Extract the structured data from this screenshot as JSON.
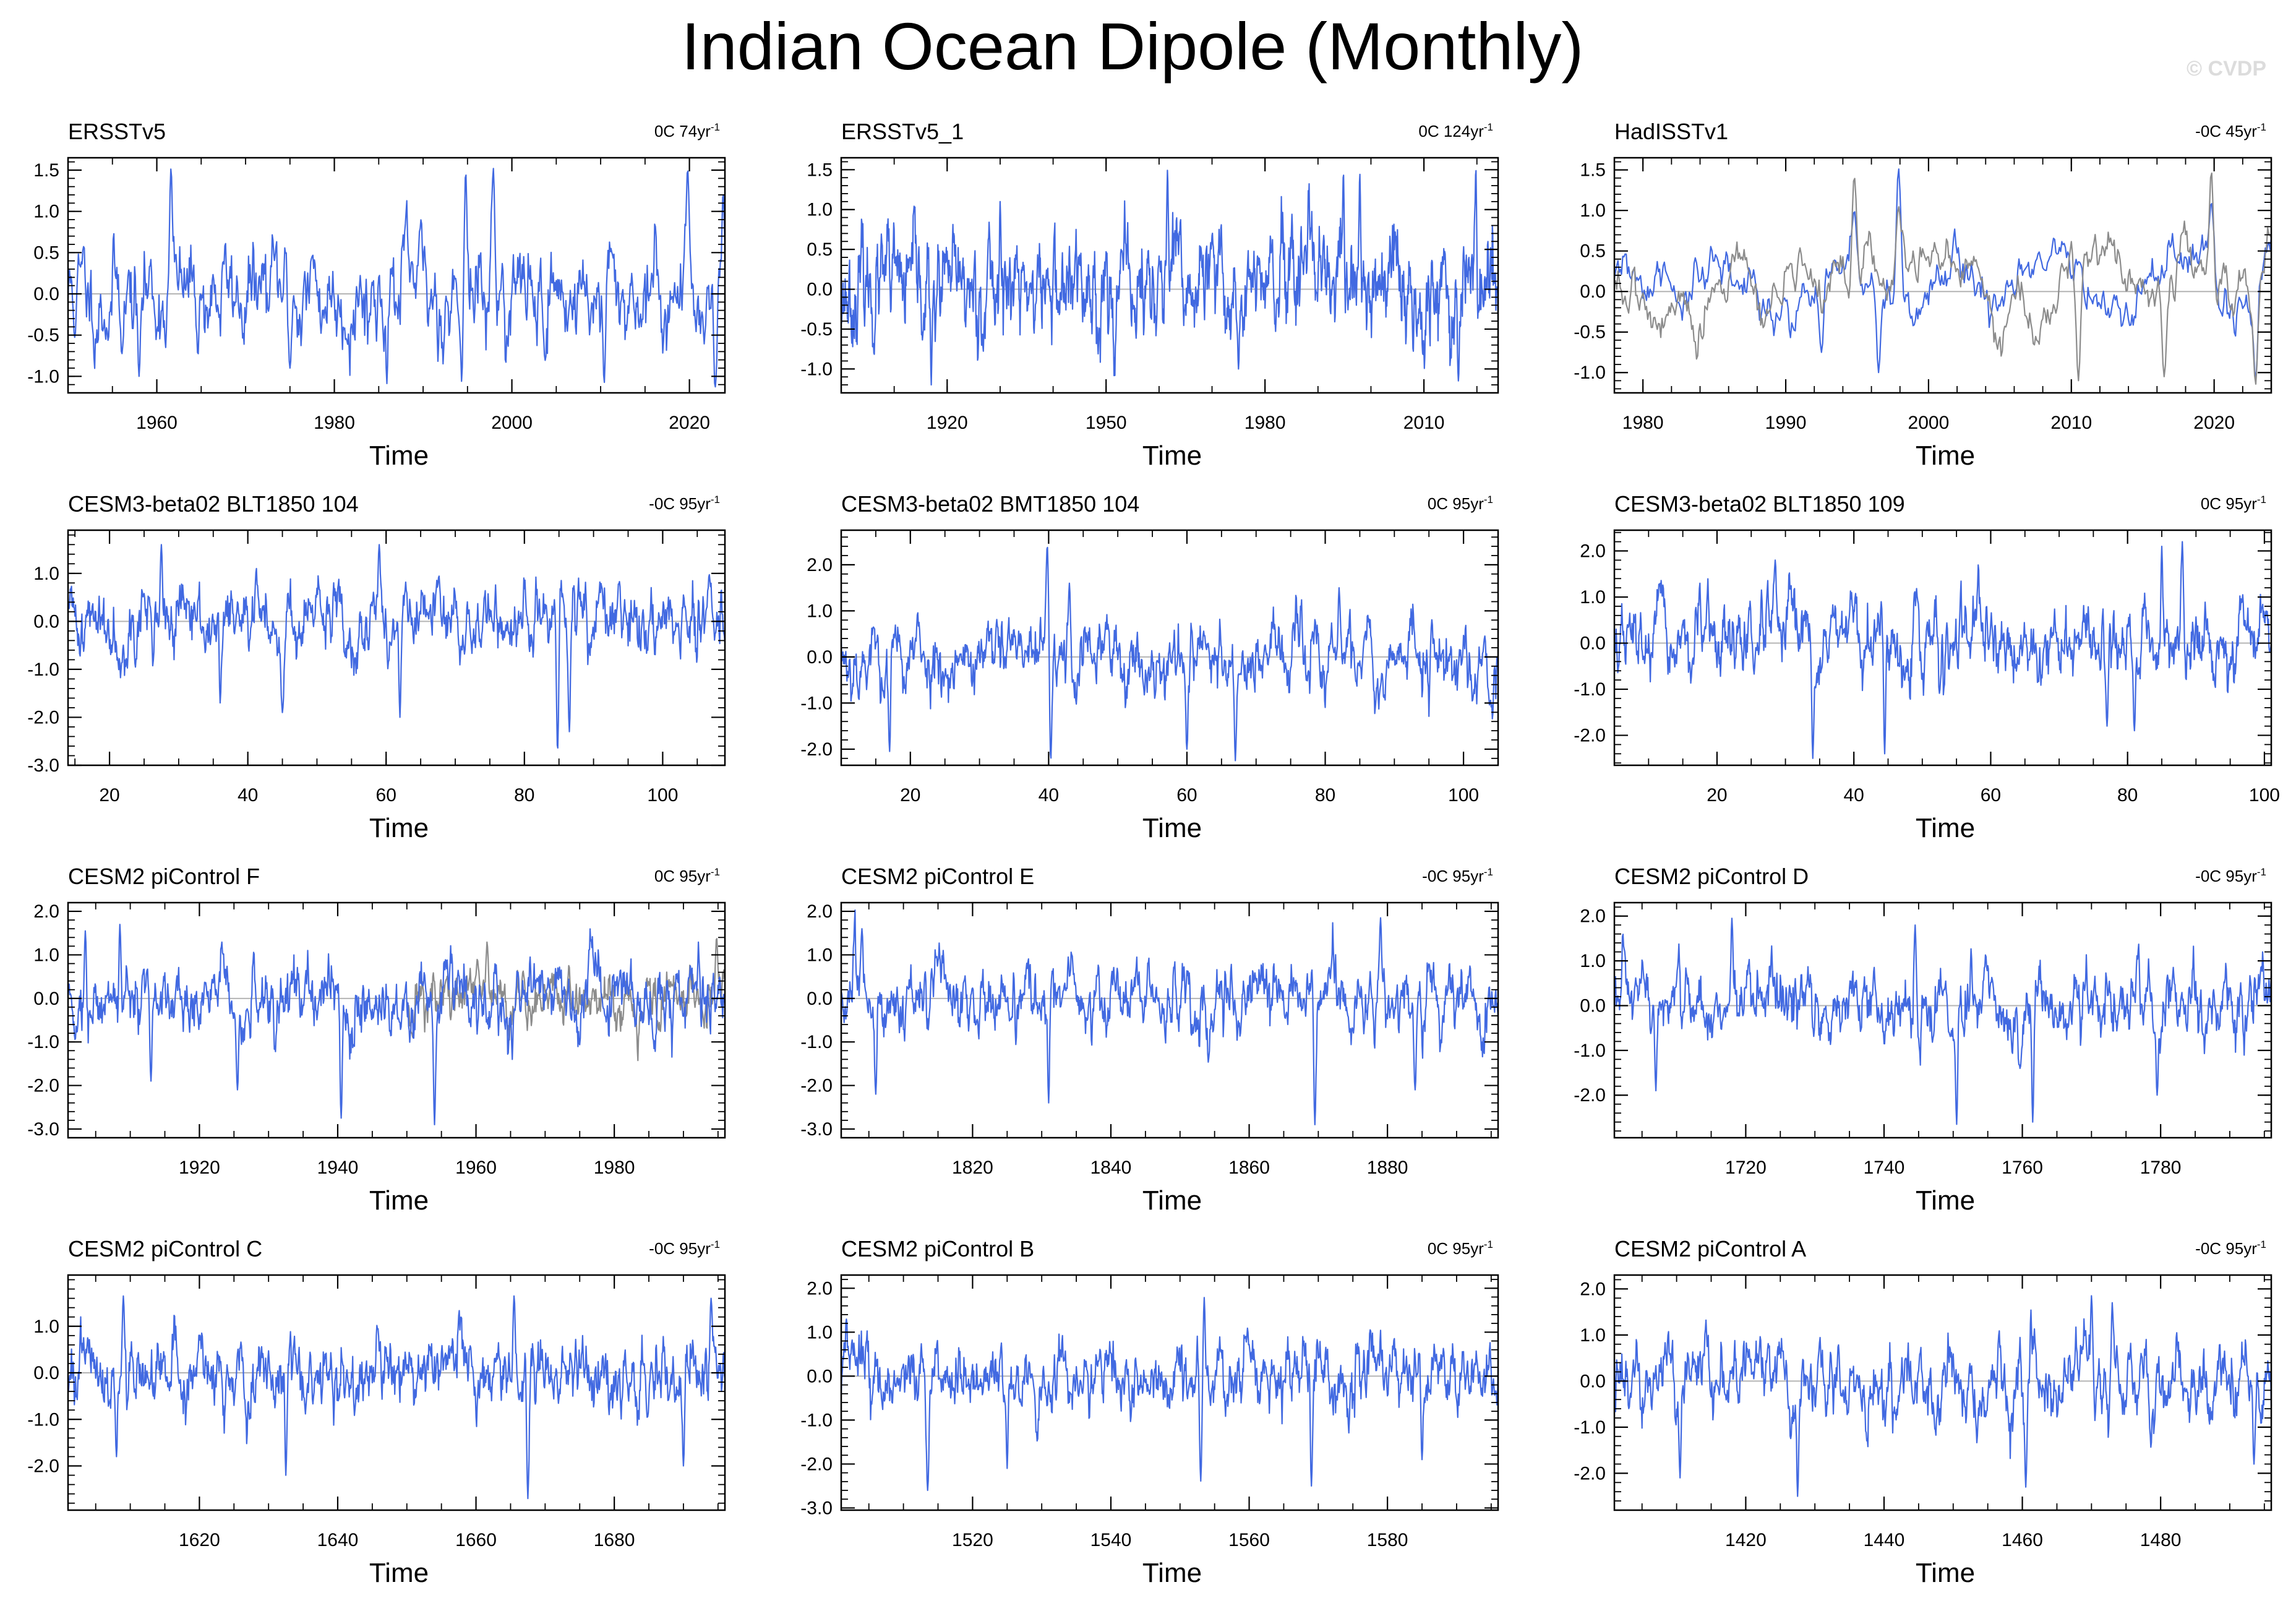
{
  "page": {
    "title": "Indian Ocean Dipole (Monthly)",
    "watermark": "© CVDP"
  },
  "colors": {
    "model": "#4169e1",
    "obs_overlay": "#8c8c8c",
    "zero_line": "#b4b4b4",
    "frame": "#000000"
  },
  "chart_data": [
    {
      "type": "line",
      "title": "ERSSTv5",
      "note": "0C 74yr",
      "note_exp": "-1",
      "xlabel": "Time",
      "xlim": [
        1950,
        2024
      ],
      "ylim": [
        -1.2,
        1.65
      ],
      "xticks": [
        1960,
        1980,
        2000,
        2020
      ],
      "yticks": [
        -1.0,
        -0.5,
        0.0,
        0.5,
        1.0,
        1.5
      ],
      "ytick_labels": [
        "-1.0",
        "-0.5",
        "0.0",
        "0.5",
        "1.0",
        "1.5"
      ],
      "minor_y_step": 0.1,
      "series": [
        {
          "name": "ERSSTv5",
          "color": "#4169e1",
          "seed": 11,
          "amp": 0.36,
          "peaks": [
            [
              1961.6,
              1.52
            ],
            [
              1994.8,
              1.48
            ],
            [
              1997.9,
              1.53
            ],
            [
              2019.8,
              1.52
            ],
            [
              2023.8,
              1.22
            ],
            [
              2010.4,
              -1.08
            ],
            [
              2022.9,
              -1.13
            ],
            [
              1958.0,
              -1.0
            ],
            [
              1975.0,
              -0.9
            ]
          ]
        }
      ]
    },
    {
      "type": "line",
      "title": "ERSSTv5_1",
      "note": "0C 124yr",
      "note_exp": "-1",
      "xlabel": "Time",
      "xlim": [
        1900,
        2024
      ],
      "ylim": [
        -1.3,
        1.65
      ],
      "xticks": [
        1920,
        1950,
        1980,
        2010
      ],
      "yticks": [
        -1.0,
        -0.5,
        0.0,
        0.5,
        1.0,
        1.5
      ],
      "ytick_labels": [
        "-1.0",
        "-0.5",
        "0.0",
        "0.5",
        "1.0",
        "1.5"
      ],
      "minor_y_step": 0.1,
      "series": [
        {
          "name": "ERSSTv5_1",
          "color": "#4169e1",
          "seed": 23,
          "amp": 0.36,
          "peaks": [
            [
              1961.6,
              1.5
            ],
            [
              1994.8,
              1.46
            ],
            [
              1997.9,
              1.45
            ],
            [
              2019.8,
              1.52
            ],
            [
              1917.0,
              -1.2
            ],
            [
              1930.0,
              1.1
            ],
            [
              2016.5,
              -1.15
            ],
            [
              1975.0,
              -1.0
            ]
          ]
        }
      ]
    },
    {
      "type": "line",
      "title": "HadISSTv1",
      "note": "-0C 45yr",
      "note_exp": "-1",
      "xlabel": "Time",
      "xlim": [
        1978,
        2024
      ],
      "ylim": [
        -1.25,
        1.65
      ],
      "xticks": [
        1980,
        1990,
        2000,
        2010,
        2020
      ],
      "yticks": [
        -1.0,
        -0.5,
        0.0,
        0.5,
        1.0,
        1.5
      ],
      "ytick_labels": [
        "-1.0",
        "-0.5",
        "0.0",
        "0.5",
        "1.0",
        "1.5"
      ],
      "minor_y_step": 0.1,
      "series": [
        {
          "name": "HadISSTv1",
          "color": "#4169e1",
          "seed": 31,
          "amp": 0.28,
          "smooth": 0.92,
          "peaks": [
            [
              1994.8,
              1.0
            ],
            [
              1997.9,
              1.52
            ],
            [
              2019.8,
              1.1
            ],
            [
              2022.9,
              -1.1
            ],
            [
              1996.5,
              -1.0
            ],
            [
              1992.5,
              -0.75
            ]
          ]
        },
        {
          "name": "ERSSTv5",
          "color": "#8c8c8c",
          "seed": 32,
          "amp": 0.3,
          "smooth": 0.92,
          "peaks": [
            [
              1994.8,
              1.42
            ],
            [
              1997.9,
              1.05
            ],
            [
              2019.8,
              1.5
            ],
            [
              2022.9,
              -1.15
            ],
            [
              2010.5,
              -1.1
            ],
            [
              2016.5,
              -1.05
            ]
          ]
        }
      ]
    },
    {
      "type": "line",
      "title": "CESM3-beta02 BLT1850 104",
      "note": "-0C 95yr",
      "note_exp": "-1",
      "xlabel": "Time",
      "xlim": [
        14,
        109
      ],
      "ylim": [
        -3.0,
        1.9
      ],
      "xticks": [
        20,
        40,
        60,
        80,
        100
      ],
      "yticks": [
        -3.0,
        -2.0,
        -1.0,
        0.0,
        1.0
      ],
      "ytick_labels": [
        "-3.0",
        "-2.0",
        "-1.0",
        "0.0",
        "1.0"
      ],
      "minor_y_step": 0.2,
      "series": [
        {
          "name": "CESM3-beta02 BLT1850 104",
          "color": "#4169e1",
          "seed": 41,
          "amp": 0.42,
          "peaks": [
            [
              84.8,
              -2.7
            ],
            [
              62,
              -2.0
            ],
            [
              86.5,
              -2.3
            ],
            [
              59,
              1.6
            ],
            [
              27.5,
              1.6
            ],
            [
              45,
              -1.9
            ],
            [
              36,
              -1.7
            ]
          ]
        }
      ]
    },
    {
      "type": "line",
      "title": "CESM3-beta02 BMT1850 104",
      "note": "0C 95yr",
      "note_exp": "-1",
      "xlabel": "Time",
      "xlim": [
        10,
        105
      ],
      "ylim": [
        -2.35,
        2.75
      ],
      "xticks": [
        20,
        40,
        60,
        80,
        100
      ],
      "yticks": [
        -2.0,
        -1.0,
        0.0,
        1.0,
        2.0
      ],
      "ytick_labels": [
        "-2.0",
        "-1.0",
        "0.0",
        "1.0",
        "2.0"
      ],
      "minor_y_step": 0.2,
      "series": [
        {
          "name": "CESM3-beta02 BMT1850 104",
          "color": "#4169e1",
          "seed": 53,
          "amp": 0.45,
          "peaks": [
            [
              39.8,
              2.45
            ],
            [
              40.3,
              -2.25
            ],
            [
              67,
              -2.25
            ],
            [
              17,
              -2.05
            ],
            [
              60,
              -2.0
            ],
            [
              43,
              1.6
            ],
            [
              82,
              1.5
            ]
          ]
        }
      ]
    },
    {
      "type": "line",
      "title": "CESM3-beta02 BLT1850 109",
      "note": "0C 95yr",
      "note_exp": "-1",
      "xlabel": "Time",
      "xlim": [
        5,
        101
      ],
      "ylim": [
        -2.65,
        2.45
      ],
      "xticks": [
        20,
        40,
        60,
        80,
        100
      ],
      "yticks": [
        -2.0,
        -1.0,
        0.0,
        1.0,
        2.0
      ],
      "ytick_labels": [
        "-2.0",
        "-1.0",
        "0.0",
        "1.0",
        "2.0"
      ],
      "minor_y_step": 0.2,
      "series": [
        {
          "name": "CESM3-beta02 BLT1850 109",
          "color": "#4169e1",
          "seed": 67,
          "amp": 0.45,
          "peaks": [
            [
              34,
              -2.5
            ],
            [
              44.5,
              -2.4
            ],
            [
              88,
              2.2
            ],
            [
              85,
              2.1
            ],
            [
              28.5,
              1.8
            ],
            [
              77,
              -1.8
            ],
            [
              81,
              -1.9
            ]
          ]
        }
      ]
    },
    {
      "type": "line",
      "title": "CESM2 piControl F",
      "note": "0C 95yr",
      "note_exp": "-1",
      "xlabel": "Time",
      "xlim": [
        1901,
        1996
      ],
      "ylim": [
        -3.2,
        2.2
      ],
      "xticks": [
        1920,
        1940,
        1960,
        1980
      ],
      "yticks": [
        -3.0,
        -2.0,
        -1.0,
        0.0,
        1.0,
        2.0
      ],
      "ytick_labels": [
        "-3.0",
        "-2.0",
        "-1.0",
        "0.0",
        "1.0",
        "2.0"
      ],
      "minor_y_step": 0.2,
      "series": [
        {
          "name": "ERSSTv5",
          "color": "#8c8c8c",
          "seed": 71,
          "amp": 0.38,
          "xrange": [
            1950,
            1996
          ],
          "peaks": [
            [
              1994.8,
              1.4
            ],
            [
              1961.6,
              1.3
            ]
          ]
        },
        {
          "name": "CESM2 piControl F",
          "color": "#4169e1",
          "seed": 73,
          "amp": 0.45,
          "peaks": [
            [
              1954,
              -2.9
            ],
            [
              1940.5,
              -2.75
            ],
            [
              1908.5,
              1.7
            ],
            [
              1903.5,
              1.55
            ],
            [
              1925.5,
              -2.1
            ],
            [
              1913,
              -1.9
            ]
          ]
        }
      ]
    },
    {
      "type": "line",
      "title": "CESM2 piControl E",
      "note": "-0C 95yr",
      "note_exp": "-1",
      "xlabel": "Time",
      "xlim": [
        1801,
        1896
      ],
      "ylim": [
        -3.2,
        2.2
      ],
      "xticks": [
        1820,
        1840,
        1860,
        1880
      ],
      "yticks": [
        -3.0,
        -2.0,
        -1.0,
        0.0,
        1.0,
        2.0
      ],
      "ytick_labels": [
        "-3.0",
        "-2.0",
        "-1.0",
        "0.0",
        "1.0",
        "2.0"
      ],
      "minor_y_step": 0.2,
      "series": [
        {
          "name": "CESM2 piControl E",
          "color": "#4169e1",
          "seed": 83,
          "amp": 0.45,
          "peaks": [
            [
              1869.5,
              -2.9
            ],
            [
              1831,
              -2.4
            ],
            [
              1806,
              -2.2
            ],
            [
              1879,
              1.85
            ],
            [
              1804,
              1.6
            ],
            [
              1884,
              -2.1
            ]
          ]
        }
      ]
    },
    {
      "type": "line",
      "title": "CESM2 piControl D",
      "note": "-0C 95yr",
      "note_exp": "-1",
      "xlabel": "Time",
      "xlim": [
        1701,
        1796
      ],
      "ylim": [
        -2.95,
        2.3
      ],
      "xticks": [
        1720,
        1740,
        1760,
        1780
      ],
      "yticks": [
        -2.0,
        -1.0,
        0.0,
        1.0,
        2.0
      ],
      "ytick_labels": [
        "-2.0",
        "-1.0",
        "0.0",
        "1.0",
        "2.0"
      ],
      "minor_y_step": 0.2,
      "series": [
        {
          "name": "CESM2 piControl D",
          "color": "#4169e1",
          "seed": 97,
          "amp": 0.45,
          "peaks": [
            [
              1718,
              1.95
            ],
            [
              1750.5,
              -2.65
            ],
            [
              1761.5,
              -2.6
            ],
            [
              1707,
              -1.9
            ],
            [
              1779.5,
              -2.0
            ],
            [
              1744.5,
              1.8
            ]
          ]
        }
      ]
    },
    {
      "type": "line",
      "title": "CESM2 piControl C",
      "note": "-0C 95yr",
      "note_exp": "-1",
      "xlabel": "Time",
      "xlim": [
        1601,
        1696
      ],
      "ylim": [
        -2.95,
        2.1
      ],
      "xticks": [
        1620,
        1640,
        1660,
        1680
      ],
      "yticks": [
        -2.0,
        -1.0,
        0.0,
        1.0
      ],
      "ytick_labels": [
        "-2.0",
        "-1.0",
        "0.0",
        "1.0"
      ],
      "minor_y_step": 0.2,
      "series": [
        {
          "name": "CESM2 piControl C",
          "color": "#4169e1",
          "seed": 101,
          "amp": 0.45,
          "peaks": [
            [
              1667.5,
              -2.7
            ],
            [
              1632.5,
              -2.2
            ],
            [
              1665.5,
              1.65
            ],
            [
              1694,
              1.6
            ],
            [
              1609,
              1.65
            ],
            [
              1690,
              -2.0
            ],
            [
              1608,
              -1.8
            ]
          ]
        }
      ]
    },
    {
      "type": "line",
      "title": "CESM2 piControl B",
      "note": "0C 95yr",
      "note_exp": "-1",
      "xlabel": "Time",
      "xlim": [
        1501,
        1596
      ],
      "ylim": [
        -3.05,
        2.3
      ],
      "xticks": [
        1520,
        1540,
        1560,
        1580
      ],
      "yticks": [
        -3.0,
        -2.0,
        -1.0,
        0.0,
        1.0,
        2.0
      ],
      "ytick_labels": [
        "-3.0",
        "-2.0",
        "-1.0",
        "0.0",
        "1.0",
        "2.0"
      ],
      "minor_y_step": 0.2,
      "series": [
        {
          "name": "CESM2 piControl B",
          "color": "#4169e1",
          "seed": 113,
          "amp": 0.45,
          "peaks": [
            [
              1513.5,
              -2.6
            ],
            [
              1569,
              -2.5
            ],
            [
              1553,
              -2.4
            ],
            [
              1553.5,
              1.8
            ],
            [
              1525,
              -2.1
            ],
            [
              1585,
              -1.9
            ]
          ]
        }
      ]
    },
    {
      "type": "line",
      "title": "CESM2 piControl A",
      "note": "-0C 95yr",
      "note_exp": "-1",
      "xlabel": "Time",
      "xlim": [
        1401,
        1496
      ],
      "ylim": [
        -2.8,
        2.3
      ],
      "xticks": [
        1420,
        1440,
        1460,
        1480
      ],
      "yticks": [
        -2.0,
        -1.0,
        0.0,
        1.0,
        2.0
      ],
      "ytick_labels": [
        "-2.0",
        "-1.0",
        "0.0",
        "1.0",
        "2.0"
      ],
      "minor_y_step": 0.2,
      "series": [
        {
          "name": "CESM2 piControl A",
          "color": "#4169e1",
          "seed": 127,
          "amp": 0.45,
          "peaks": [
            [
              1427.5,
              -2.5
            ],
            [
              1470,
              1.85
            ],
            [
              1460.5,
              -2.3
            ],
            [
              1493.5,
              -1.8
            ],
            [
              1473,
              1.7
            ],
            [
              1410.5,
              -2.1
            ]
          ]
        }
      ]
    }
  ]
}
